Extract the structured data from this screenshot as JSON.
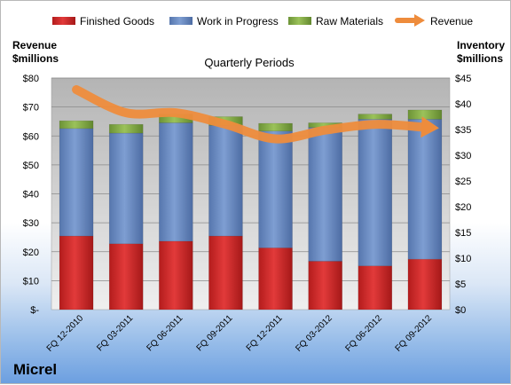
{
  "chart_data": {
    "type": "bar",
    "stacked": true,
    "title": "Quarterly Periods",
    "company": "Micrel",
    "categories": [
      "FQ 12-2010",
      "FQ 03-2011",
      "FQ 06-2011",
      "FQ 09-2011",
      "FQ 12-2011",
      "FQ 03-2012",
      "FQ 06-2012",
      "FQ 09-2012"
    ],
    "left_axis": {
      "label_line1": "Revenue",
      "label_line2": "$millions",
      "ylim": [
        0,
        80
      ],
      "ticks": [
        "$-",
        "$10",
        "$20",
        "$30",
        "$40",
        "$50",
        "$60",
        "$70",
        "$80"
      ]
    },
    "right_axis": {
      "label_line1": "Inventory",
      "label_line2": "$millions",
      "ylim": [
        0,
        45
      ],
      "ticks": [
        "$0",
        "$5",
        "$10",
        "$15",
        "$20",
        "$25",
        "$30",
        "$35",
        "$40",
        "$45"
      ]
    },
    "series": [
      {
        "name": "Finished Goods",
        "axis": "right",
        "color": "#d42a2a",
        "values": [
          14.3,
          12.8,
          13.3,
          14.3,
          12.0,
          9.4,
          8.5,
          9.8
        ]
      },
      {
        "name": "Work in Progress",
        "axis": "right",
        "color": "#6f8fc4",
        "values": [
          20.9,
          21.5,
          23.0,
          21.5,
          22.7,
          26.0,
          28.5,
          27.2
        ]
      },
      {
        "name": "Raw Materials",
        "axis": "right",
        "color": "#8ab04a",
        "values": [
          1.5,
          1.7,
          1.7,
          1.7,
          1.5,
          0.9,
          1.0,
          1.8
        ]
      },
      {
        "name": "Revenue",
        "axis": "left",
        "type": "line",
        "color": "#ee8c3c",
        "values": [
          76,
          68,
          68,
          64,
          59,
          62,
          64,
          63
        ]
      }
    ],
    "grid": true,
    "legend": "top"
  }
}
